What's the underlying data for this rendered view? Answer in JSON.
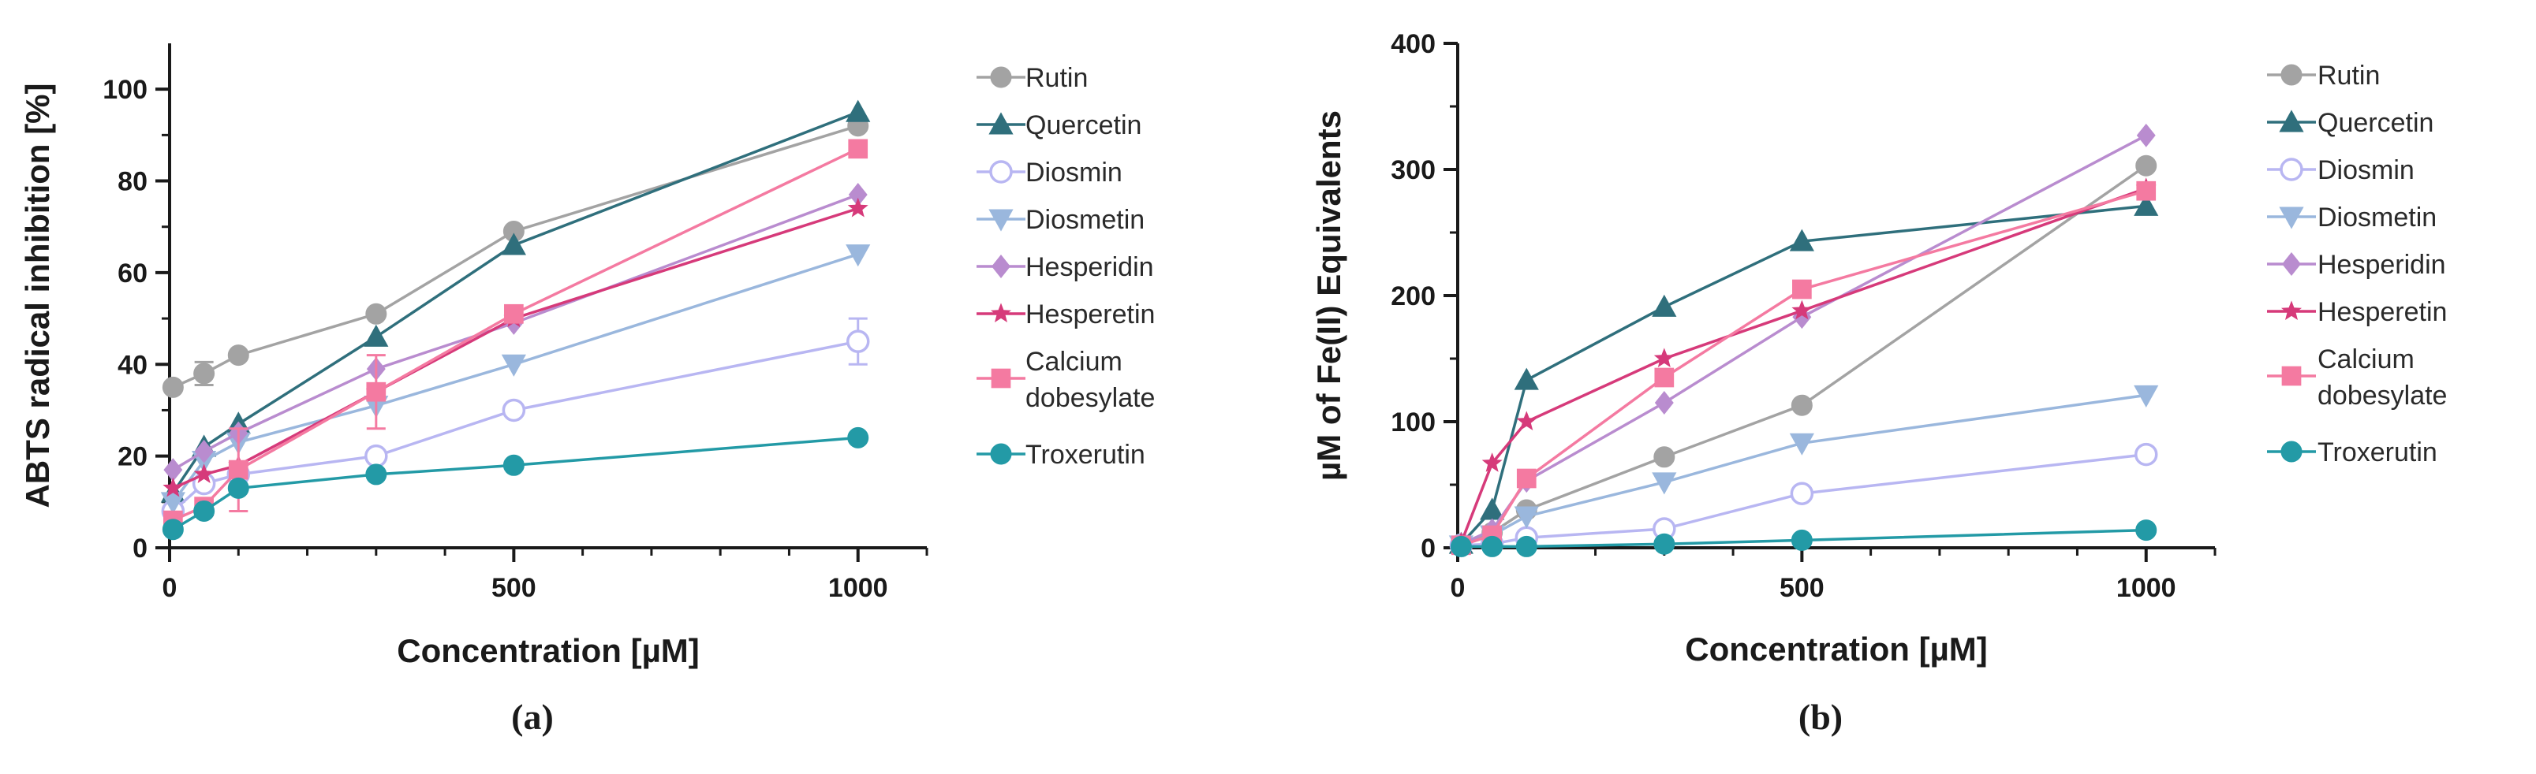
{
  "chart_data": [
    {
      "type": "line",
      "panel_label": "(a)",
      "xlabel": "Concentration [µM]",
      "ylabel": "ABTS radical inhibition [%]",
      "xlim": [
        0,
        1100
      ],
      "ylim": [
        0,
        110
      ],
      "xticks": [
        0,
        500,
        1000
      ],
      "yticks": [
        0,
        20,
        40,
        60,
        80,
        100
      ],
      "xtick_labels": [
        "0",
        "500",
        "1000"
      ],
      "ytick_labels": [
        "0",
        "20",
        "40",
        "60",
        "80",
        "100"
      ],
      "legend_position": "right",
      "x": [
        5,
        50,
        100,
        300,
        500,
        1000
      ],
      "series": [
        {
          "name": "Rutin",
          "values": [
            35,
            38,
            42,
            51,
            69,
            92
          ],
          "errors": [
            0,
            2.5,
            0,
            0,
            0,
            0
          ]
        },
        {
          "name": "Quercetin",
          "values": [
            12,
            22,
            27,
            46,
            66,
            95
          ],
          "errors": [
            0,
            0,
            0,
            0,
            0,
            0
          ]
        },
        {
          "name": "Diosmin",
          "values": [
            8,
            14,
            16,
            20,
            30,
            45
          ],
          "errors": [
            0,
            0,
            0,
            0,
            0,
            5
          ]
        },
        {
          "name": "Diosmetin",
          "values": [
            10,
            19,
            23,
            31,
            40,
            64
          ],
          "errors": [
            0,
            0,
            0,
            0,
            0,
            0
          ]
        },
        {
          "name": "Hesperidin",
          "values": [
            17,
            21,
            25,
            39,
            49,
            77
          ],
          "errors": [
            0,
            0,
            0,
            0,
            0,
            0
          ]
        },
        {
          "name": "Hesperetin",
          "values": [
            13,
            16,
            18,
            34,
            50,
            74
          ],
          "errors": [
            0,
            0,
            0,
            0,
            0,
            0
          ]
        },
        {
          "name": "Calcium dobesylate",
          "values": [
            6,
            9,
            17,
            34,
            51,
            87
          ],
          "errors": [
            0,
            0,
            9,
            8,
            0,
            0
          ]
        },
        {
          "name": "Troxerutin",
          "values": [
            4,
            8,
            13,
            16,
            18,
            24
          ],
          "errors": [
            0,
            0,
            0,
            0,
            0,
            0
          ]
        }
      ]
    },
    {
      "type": "line",
      "panel_label": "(b)",
      "xlabel": "Concentration [µM]",
      "ylabel": "µM of Fe(II) Equivalents",
      "xlim": [
        0,
        1100
      ],
      "ylim": [
        0,
        400
      ],
      "xticks": [
        0,
        500,
        1000
      ],
      "yticks": [
        0,
        100,
        200,
        300,
        400
      ],
      "xtick_labels": [
        "0",
        "500",
        "1000"
      ],
      "ytick_labels": [
        "0",
        "100",
        "200",
        "300",
        "400"
      ],
      "legend_position": "right",
      "x": [
        5,
        50,
        100,
        300,
        500,
        1000
      ],
      "series": [
        {
          "name": "Rutin",
          "values": [
            3,
            12,
            30,
            72,
            113,
            303
          ],
          "errors": [
            0,
            0,
            0,
            0,
            0,
            0
          ]
        },
        {
          "name": "Quercetin",
          "values": [
            3,
            30,
            133,
            191,
            243,
            271
          ],
          "errors": [
            0,
            0,
            0,
            0,
            0,
            0
          ]
        },
        {
          "name": "Diosmin",
          "values": [
            2,
            3,
            8,
            15,
            43,
            74
          ],
          "errors": [
            0,
            0,
            0,
            0,
            0,
            0
          ]
        },
        {
          "name": "Diosmetin",
          "values": [
            2,
            10,
            25,
            52,
            83,
            121
          ],
          "errors": [
            0,
            0,
            0,
            0,
            0,
            0
          ]
        },
        {
          "name": "Hesperidin",
          "values": [
            3,
            14,
            53,
            115,
            183,
            327
          ],
          "errors": [
            0,
            0,
            0,
            0,
            0,
            0
          ]
        },
        {
          "name": "Hesperetin",
          "values": [
            4,
            67,
            100,
            150,
            188,
            285
          ],
          "errors": [
            0,
            0,
            0,
            0,
            0,
            0
          ]
        },
        {
          "name": "Calcium dobesylate",
          "values": [
            2,
            10,
            55,
            135,
            205,
            283
          ],
          "errors": [
            0,
            0,
            0,
            0,
            0,
            0
          ]
        },
        {
          "name": "Troxerutin",
          "values": [
            1,
            1,
            1,
            3,
            6,
            14
          ],
          "errors": [
            0,
            0,
            0,
            0,
            0,
            0
          ]
        }
      ]
    }
  ],
  "legend": [
    {
      "name": "Rutin",
      "lines": [
        "Rutin"
      ],
      "color": "#a3a3a3",
      "marker": "circle"
    },
    {
      "name": "Quercetin",
      "lines": [
        "Quercetin"
      ],
      "color": "#2f6f7c",
      "marker": "triangle-up"
    },
    {
      "name": "Diosmin",
      "lines": [
        "Diosmin"
      ],
      "color": "#b8b6f2",
      "marker": "circle-open"
    },
    {
      "name": "Diosmetin",
      "lines": [
        "Diosmetin"
      ],
      "color": "#9ab7dd",
      "marker": "triangle-down"
    },
    {
      "name": "Hesperidin",
      "lines": [
        "Hesperidin"
      ],
      "color": "#b98ccf",
      "marker": "diamond"
    },
    {
      "name": "Hesperetin",
      "lines": [
        "Hesperetin"
      ],
      "color": "#d63a7a",
      "marker": "star"
    },
    {
      "name": "Calcium dobesylate",
      "lines": [
        "Calcium",
        "dobesylate"
      ],
      "color": "#f47aa1",
      "marker": "square"
    },
    {
      "name": "Troxerutin",
      "lines": [
        "Troxerutin"
      ],
      "color": "#239aa6",
      "marker": "circle"
    }
  ]
}
